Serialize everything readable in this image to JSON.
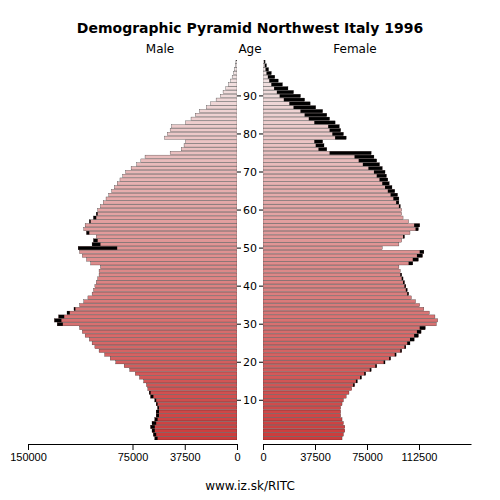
{
  "chart_data": {
    "type": "bar",
    "orientation": "horizontal",
    "title": "Demographic Pyramid Northwest Italy 1996",
    "y_label": "Age",
    "footer": "www.iz.sk/RITC",
    "xlim": [
      0,
      150000
    ],
    "categories": [
      null,
      null,
      null,
      null,
      null,
      null,
      null,
      null,
      null,
      null,
      10,
      null,
      null,
      null,
      null,
      null,
      null,
      null,
      null,
      null,
      20,
      null,
      null,
      null,
      null,
      null,
      null,
      null,
      null,
      null,
      30,
      null,
      null,
      null,
      null,
      null,
      null,
      null,
      null,
      null,
      40,
      null,
      null,
      null,
      null,
      null,
      null,
      null,
      null,
      null,
      50,
      null,
      null,
      null,
      null,
      null,
      null,
      null,
      null,
      null,
      60,
      null,
      null,
      null,
      null,
      null,
      null,
      null,
      null,
      null,
      70,
      null,
      null,
      null,
      null,
      null,
      null,
      null,
      null,
      null,
      80,
      null,
      null,
      null,
      null,
      null,
      null,
      null,
      null,
      null,
      90,
      null,
      null,
      null,
      null,
      null,
      null,
      null,
      null,
      null
    ],
    "series": [
      {
        "name": "Male",
        "color": "#cc3b3b",
        "xticks": [
          150000,
          75000,
          37500,
          0
        ],
        "values": [
          59000,
          60000,
          61000,
          62000,
          61000,
          59000,
          58000,
          58000,
          57000,
          58000,
          59000,
          62000,
          63000,
          64000,
          65000,
          67000,
          70000,
          73000,
          77000,
          81000,
          87000,
          91000,
          95000,
          99000,
          102000,
          104000,
          106000,
          109000,
          111000,
          113000,
          129000,
          131000,
          128000,
          122000,
          117000,
          113000,
          110000,
          107000,
          104000,
          103000,
          102000,
          101000,
          100000,
          99000,
          99000,
          98000,
          105000,
          108000,
          111000,
          113000,
          114000,
          104000,
          103000,
          101000,
          108000,
          110000,
          109000,
          106000,
          103000,
          101000,
          100000,
          98000,
          96000,
          94000,
          92000,
          90000,
          88000,
          86000,
          84000,
          82000,
          80000,
          76000,
          72000,
          69000,
          66000,
          48000,
          40000,
          38000,
          37000,
          52000,
          50000,
          48000,
          47000,
          37000,
          33000,
          30000,
          27000,
          22000,
          19000,
          15000,
          12000,
          10000,
          8000,
          6000,
          4500,
          3500,
          2500,
          1800,
          1200,
          800
        ]
      },
      {
        "name": "Female",
        "color": "#cc3b3b",
        "xticks": [
          0,
          37500,
          75000,
          112500
        ],
        "values": [
          57000,
          58000,
          59000,
          59000,
          58000,
          57000,
          56000,
          56000,
          56000,
          57000,
          58000,
          60000,
          62000,
          64000,
          66000,
          68000,
          71000,
          74000,
          78000,
          82000,
          88000,
          92000,
          96000,
          100000,
          103000,
          106000,
          109000,
          112000,
          114000,
          117000,
          125000,
          126000,
          124000,
          120000,
          116000,
          113000,
          110000,
          107000,
          105000,
          104000,
          103000,
          102000,
          101000,
          100000,
          99000,
          98000,
          108000,
          112000,
          115000,
          116000,
          86000,
          98000,
          100000,
          102000,
          106000,
          112000,
          113000,
          105000,
          101000,
          100000,
          100000,
          99000,
          98000,
          98000,
          97000,
          95000,
          93000,
          91000,
          90000,
          89000,
          88000,
          86000,
          84000,
          82000,
          80000,
          78000,
          46000,
          44000,
          43000,
          60000,
          58000,
          56000,
          55000,
          52000,
          48000,
          46000,
          43000,
          38000,
          34000,
          30000,
          27000,
          22000,
          18000,
          14000,
          11000,
          8500,
          6000,
          4000,
          2500,
          1500
        ]
      }
    ]
  }
}
